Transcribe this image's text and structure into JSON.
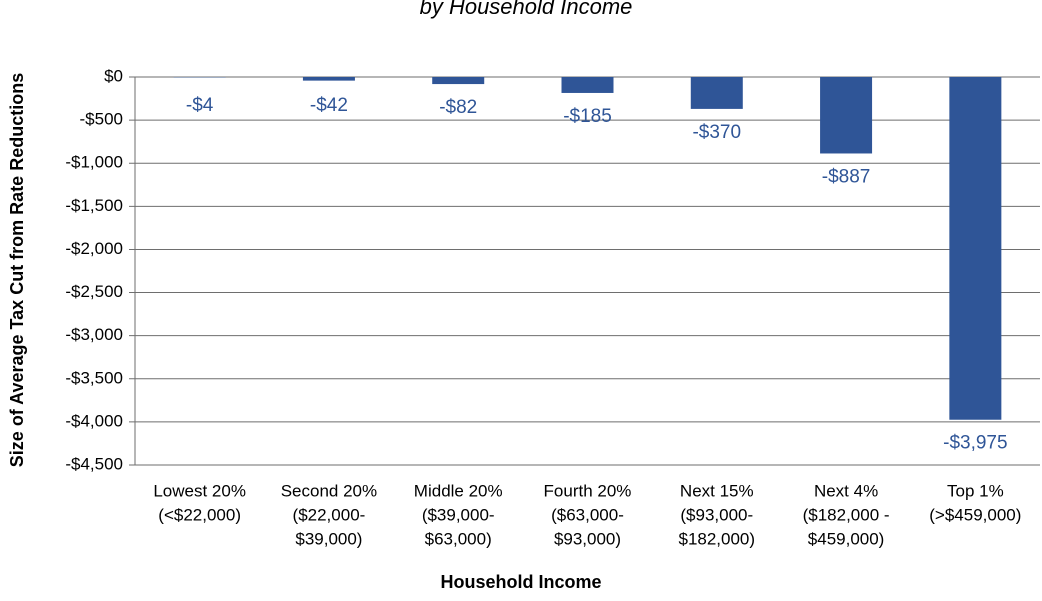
{
  "chart_data": {
    "type": "bar",
    "subtitle": "by Household Income",
    "y_label": "Size of Average Tax Cut from Rate Reductions",
    "x_label": "Household Income",
    "categories": [
      [
        "Lowest 20%",
        "(<$22,000)"
      ],
      [
        "Second 20%",
        "($22,000-",
        "$39,000)"
      ],
      [
        "Middle 20%",
        "($39,000-",
        "$63,000)"
      ],
      [
        "Fourth 20%",
        "($63,000-",
        "$93,000)"
      ],
      [
        "Next 15%",
        "($93,000-",
        "$182,000)"
      ],
      [
        "Next 4%",
        "($182,000 -",
        "$459,000)"
      ],
      [
        "Top 1%",
        "(>$459,000)"
      ]
    ],
    "values": [
      -4,
      -42,
      -82,
      -185,
      -370,
      -887,
      -3975
    ],
    "value_labels": [
      "-$4",
      "-$42",
      "-$82",
      "-$185",
      "-$370",
      "-$887",
      "-$3,975"
    ],
    "color": "#2f5597",
    "ylim": [
      -4500,
      0
    ],
    "yticks": [
      {
        "value": 0,
        "label": "$0"
      },
      {
        "value": -500,
        "label": "-$500"
      },
      {
        "value": -1000,
        "label": "-$1,000"
      },
      {
        "value": -1500,
        "label": "-$1,500"
      },
      {
        "value": -2000,
        "label": "-$2,000"
      },
      {
        "value": -2500,
        "label": "-$2,500"
      },
      {
        "value": -3000,
        "label": "-$3,000"
      },
      {
        "value": -3500,
        "label": "-$3,500"
      },
      {
        "value": -4000,
        "label": "-$4,000"
      },
      {
        "value": -4500,
        "label": "-$4,500"
      }
    ],
    "grid": true
  }
}
